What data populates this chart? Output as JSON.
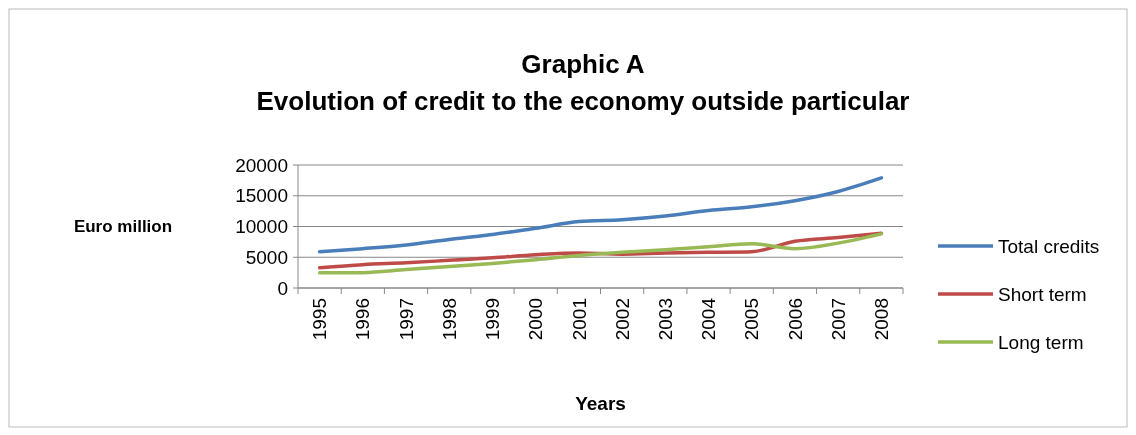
{
  "chart_data": {
    "type": "line",
    "title": "Graphic A",
    "subtitle": "Evolution of credit to the economy outside particular",
    "xlabel": "Years",
    "ylabel": "Euro million",
    "categories": [
      "1995",
      "1996",
      "1997",
      "1998",
      "1999",
      "2000",
      "2001",
      "2002",
      "2003",
      "2004",
      "2005",
      "2006",
      "2007",
      "2008"
    ],
    "series": [
      {
        "name": "Total credits",
        "color": "#4a7ebb",
        "values": [
          5900,
          6400,
          7000,
          7900,
          8700,
          9700,
          10800,
          11100,
          11700,
          12600,
          13200,
          14200,
          15700,
          17900
        ]
      },
      {
        "name": "Short term",
        "color": "#be4b48",
        "values": [
          3300,
          3800,
          4100,
          4500,
          4900,
          5400,
          5700,
          5500,
          5700,
          5800,
          5900,
          7600,
          8200,
          8900
        ]
      },
      {
        "name": "Long term",
        "color": "#98b954",
        "values": [
          2500,
          2500,
          3000,
          3500,
          4000,
          4600,
          5300,
          5800,
          6200,
          6700,
          7200,
          6400,
          7300,
          8800
        ]
      }
    ],
    "ylim": [
      0,
      20000
    ],
    "yticks": [
      0,
      5000,
      10000,
      15000,
      20000
    ],
    "grid": "y",
    "legend": "right",
    "line_style": "solid",
    "marker": "none"
  }
}
